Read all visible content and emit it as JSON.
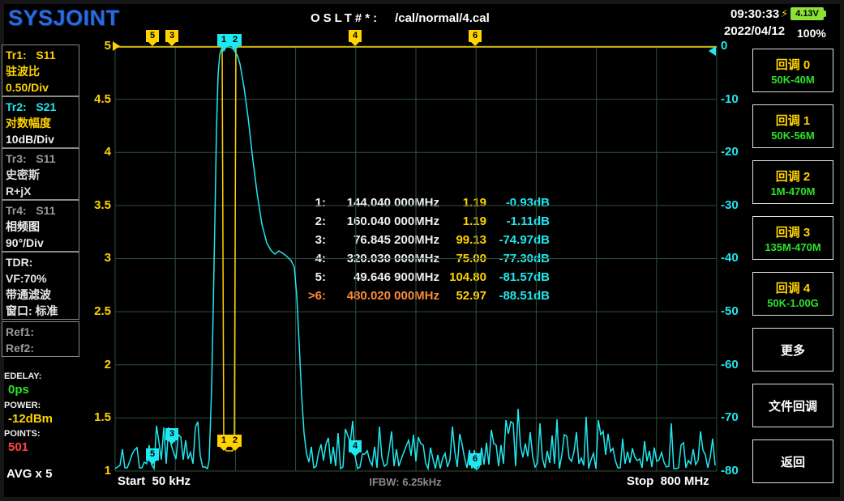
{
  "header": {
    "logo": "SYSJOINT",
    "cal_label": "OSLT#*:",
    "cal_file": "/cal/normal/4.cal",
    "time": "09:30:33",
    "battery_voltage": "4.13V",
    "date": "2022/04/12",
    "battery_percent": "100%"
  },
  "sidebar": {
    "tr1": {
      "id": "Tr1:   S11",
      "type": "驻波比",
      "scale": "0.50/Div"
    },
    "tr2": {
      "id": "Tr2:   S21",
      "type": "对数幅度",
      "scale": "10dB/Div"
    },
    "tr3": {
      "id": "Tr3:   S11",
      "type": "史密斯",
      "scale": "R+jX"
    },
    "tr4": {
      "id": "Tr4:   S11",
      "type": "相频图",
      "scale": "90°/Div"
    },
    "tdr": {
      "label": "TDR:",
      "vf": "VF:70%",
      "filter": "带通滤波",
      "window": "窗口: 标准"
    },
    "ref1": "Ref1:",
    "ref2": "Ref2:",
    "edelay_label": "EDELAY:",
    "edelay_value": "0ps",
    "power_label": "POWER:",
    "power_value": "-12dBm",
    "points_label": "POINTS:",
    "points_value": "501",
    "avg": "AVG x 5"
  },
  "chart": {
    "left_axis": [
      "5",
      "4.5",
      "4",
      "3.5",
      "3",
      "2.5",
      "2",
      "1.5",
      "1"
    ],
    "right_axis": [
      "0",
      "-10",
      "-20",
      "-30",
      "-40",
      "-50",
      "-60",
      "-70",
      "-80"
    ],
    "start_label": "Start  50 kHz",
    "ifbw_label": "IFBW: 6.25kHz",
    "stop_label": "Stop  800 MHz",
    "markers": [
      {
        "n": "1:",
        "freq": "144.040 000MHz",
        "v1": "1.19",
        "v2": "-0.93dB"
      },
      {
        "n": "2:",
        "freq": "160.040 000MHz",
        "v1": "1.19",
        "v2": "-1.11dB"
      },
      {
        "n": "3:",
        "freq": "76.845 200MHz",
        "v1": "99.13",
        "v2": "-74.97dB"
      },
      {
        "n": "4:",
        "freq": "320.030 000MHz",
        "v1": "75.00",
        "v2": "-77.30dB"
      },
      {
        "n": "5:",
        "freq": "49.646 900MHz",
        "v1": "104.80",
        "v2": "-81.57dB"
      },
      {
        "n": ">6:",
        "freq": "480.020 000MHz",
        "v1": "52.97",
        "v2": "-88.51dB"
      }
    ],
    "flags_top": [
      "5",
      "3",
      "1",
      "2",
      "4",
      "6"
    ],
    "flags_bottom": [
      "5",
      "3",
      "1",
      "2",
      "4",
      "6"
    ]
  },
  "buttons": [
    {
      "label": "回调 0",
      "sub": "50K-40M"
    },
    {
      "label": "回调 1",
      "sub": "50K-56M"
    },
    {
      "label": "回调 2",
      "sub": "1M-470M"
    },
    {
      "label": "回调 3",
      "sub": "135M-470M"
    },
    {
      "label": "回调 4",
      "sub": "50K-1.00G"
    },
    {
      "label": "更多",
      "sub": ""
    },
    {
      "label": "文件回调",
      "sub": ""
    },
    {
      "label": "返回",
      "sub": ""
    }
  ],
  "colors": {
    "grid": "#2e4f3e",
    "trace_s21": "#1fe8f0",
    "trace_swr": "#ffd200",
    "accent_green": "#2ce22c",
    "points_red": "#ff4444",
    "marker_active": "#ff8c3a"
  }
}
